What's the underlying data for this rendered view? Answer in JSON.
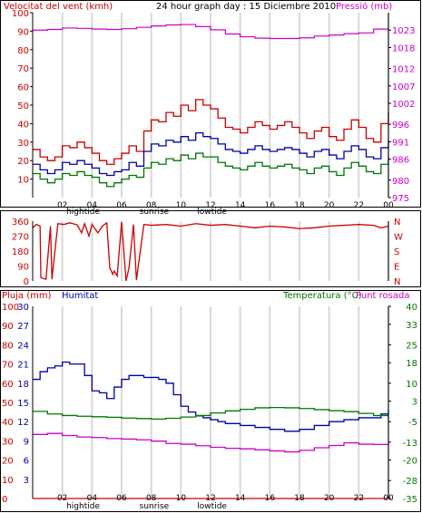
{
  "header": {
    "left_label": "Velocitat del vent (kmh)",
    "title": "24 hour graph day : 15 Diciembre 2010",
    "right_label": "Pressió (mb)"
  },
  "colors": {
    "wind": "#cc0000",
    "wind_avg": "#0000aa",
    "wind_low": "#007700",
    "pressure": "#cc00cc",
    "direction": "#cc0000",
    "rain": "#cc0000",
    "humidity": "#0000aa",
    "temperature": "#007700",
    "dewpoint": "#cc00cc",
    "grid": "#d8d8d8"
  },
  "time_axis": {
    "hours": [
      "02",
      "04",
      "06",
      "08",
      "10",
      "12",
      "14",
      "16",
      "18",
      "20",
      "22",
      "00"
    ],
    "events": [
      {
        "label": "hightide",
        "hour": 3.4
      },
      {
        "label": "sunrise",
        "hour": 8.2
      },
      {
        "label": "lowtide",
        "hour": 12.1
      }
    ]
  },
  "chart_data": [
    {
      "type": "line",
      "title": "24 hour graph day : 15 Diciembre 2010",
      "left_axis_label": "Velocitat del vent (kmh)",
      "right_axis_label": "Pressió (mb)",
      "x_range_hours": [
        0,
        24
      ],
      "left_ylim": [
        0,
        100
      ],
      "left_ticks": [
        10,
        20,
        30,
        40,
        50,
        60,
        70,
        80,
        90,
        100
      ],
      "right_ylim": [
        975,
        1028
      ],
      "right_ticks": [
        975,
        980,
        986,
        991,
        996,
        1002,
        1007,
        1012,
        1018,
        1023
      ],
      "series": [
        {
          "name": "gust",
          "axis": "left",
          "x": [
            0,
            0.5,
            1,
            1.5,
            2,
            2.5,
            3,
            3.5,
            4,
            4.5,
            5,
            5.5,
            6,
            6.5,
            7,
            7.5,
            8,
            8.5,
            9,
            9.5,
            10,
            10.5,
            11,
            11.5,
            12,
            12.5,
            13,
            13.5,
            14,
            14.5,
            15,
            15.5,
            16,
            16.5,
            17,
            17.5,
            18,
            18.5,
            19,
            19.5,
            20,
            20.5,
            21,
            21.5,
            22,
            22.5,
            23,
            23.5,
            24
          ],
          "y": [
            26,
            22,
            20,
            22,
            28,
            27,
            30,
            27,
            24,
            20,
            18,
            21,
            24,
            28,
            25,
            36,
            42,
            41,
            46,
            44,
            50,
            47,
            53,
            50,
            48,
            43,
            38,
            37,
            35,
            38,
            41,
            39,
            37,
            39,
            41,
            38,
            35,
            32,
            36,
            38,
            33,
            31,
            37,
            42,
            38,
            32,
            30,
            40,
            46
          ]
        },
        {
          "name": "average",
          "axis": "left",
          "x": [
            0,
            0.5,
            1,
            1.5,
            2,
            2.5,
            3,
            3.5,
            4,
            4.5,
            5,
            5.5,
            6,
            6.5,
            7,
            7.5,
            8,
            8.5,
            9,
            9.5,
            10,
            10.5,
            11,
            11.5,
            12,
            12.5,
            13,
            13.5,
            14,
            14.5,
            15,
            15.5,
            16,
            16.5,
            17,
            17.5,
            18,
            18.5,
            19,
            19.5,
            20,
            20.5,
            21,
            21.5,
            22,
            22.5,
            23,
            23.5,
            24
          ],
          "y": [
            18,
            15,
            13,
            15,
            19,
            18,
            20,
            18,
            16,
            13,
            12,
            14,
            15,
            19,
            17,
            25,
            29,
            28,
            31,
            30,
            33,
            31,
            35,
            33,
            32,
            29,
            26,
            25,
            24,
            26,
            28,
            26,
            25,
            26,
            27,
            26,
            24,
            22,
            25,
            26,
            23,
            21,
            25,
            28,
            26,
            22,
            21,
            27,
            31
          ]
        },
        {
          "name": "low",
          "axis": "left",
          "x": [
            0,
            0.5,
            1,
            1.5,
            2,
            2.5,
            3,
            3.5,
            4,
            4.5,
            5,
            5.5,
            6,
            6.5,
            7,
            7.5,
            8,
            8.5,
            9,
            9.5,
            10,
            10.5,
            11,
            11.5,
            12,
            12.5,
            13,
            13.5,
            14,
            14.5,
            15,
            15.5,
            16,
            16.5,
            17,
            17.5,
            18,
            18.5,
            19,
            19.5,
            20,
            20.5,
            21,
            21.5,
            22,
            22.5,
            23,
            23.5,
            24
          ],
          "y": [
            13,
            10,
            8,
            10,
            13,
            12,
            14,
            12,
            11,
            8,
            6,
            8,
            10,
            12,
            11,
            16,
            19,
            18,
            21,
            20,
            23,
            21,
            24,
            22,
            22,
            19,
            17,
            16,
            15,
            17,
            19,
            17,
            16,
            17,
            18,
            16,
            15,
            13,
            16,
            17,
            14,
            12,
            16,
            19,
            17,
            14,
            13,
            18,
            22
          ]
        },
        {
          "name": "pressure",
          "axis": "right",
          "x": [
            0,
            1,
            2,
            3,
            4,
            5,
            6,
            7,
            8,
            9,
            10,
            11,
            12,
            13,
            14,
            15,
            16,
            17,
            18,
            19,
            20,
            21,
            22,
            23,
            24
          ],
          "y": [
            1023.0,
            1023.2,
            1023.6,
            1023.5,
            1023.3,
            1023.2,
            1023.4,
            1023.8,
            1024.2,
            1024.5,
            1024.6,
            1024.0,
            1023.1,
            1021.9,
            1021.1,
            1020.7,
            1020.6,
            1020.6,
            1020.8,
            1021.3,
            1021.6,
            1022.0,
            1022.2,
            1023.3,
            1023.6
          ]
        }
      ]
    },
    {
      "type": "scatter",
      "title": "",
      "left_ylim": [
        0,
        360
      ],
      "left_ticks": [
        0,
        90,
        180,
        270,
        360
      ],
      "right_ticks": [
        "N",
        "W",
        "S",
        "E",
        "N"
      ],
      "series": [
        {
          "name": "direction",
          "x": [
            0,
            0.25,
            0.5,
            0.55,
            0.9,
            1.2,
            1.3,
            1.7,
            2.1,
            2.5,
            3.0,
            3.3,
            3.5,
            3.8,
            4.0,
            4.4,
            4.7,
            5.0,
            5.2,
            5.4,
            5.5,
            5.7,
            6.0,
            6.3,
            6.5,
            6.8,
            7.0,
            7.5,
            8,
            9,
            10,
            11,
            12,
            13,
            14,
            15,
            16,
            17,
            18,
            19,
            20,
            21,
            22,
            23,
            23.5,
            24
          ],
          "y": [
            320,
            340,
            330,
            20,
            10,
            330,
            10,
            345,
            340,
            350,
            338,
            290,
            345,
            270,
            340,
            290,
            330,
            350,
            80,
            40,
            60,
            30,
            355,
            0,
            80,
            340,
            5,
            340,
            335,
            340,
            330,
            345,
            335,
            340,
            330,
            320,
            330,
            325,
            315,
            320,
            330,
            335,
            340,
            335,
            320,
            330
          ]
        }
      ]
    },
    {
      "type": "line",
      "title": "",
      "left_axis_label": "Pluja (mm)",
      "left_axis2_label": "Humitat",
      "right_axis_label": "Temperatura (°C)",
      "right_axis2_label": "Punt rosada",
      "x_range_hours": [
        0,
        24
      ],
      "rain_ticks": [
        0,
        10,
        20,
        30,
        40,
        50,
        60,
        70,
        80,
        90,
        100
      ],
      "humidity_ticks": [
        3,
        6,
        9,
        12,
        15,
        18,
        21,
        24,
        27,
        30
      ],
      "temperature_ylim": [
        -35,
        40
      ],
      "temperature_ticks": [
        -35,
        -28,
        -20,
        -13,
        -5,
        3,
        10,
        18,
        25,
        33,
        40
      ],
      "series": [
        {
          "name": "rain",
          "axis": "rain",
          "x": [
            0,
            24
          ],
          "y": [
            0,
            0
          ]
        },
        {
          "name": "humidity",
          "axis": "rain",
          "x": [
            0,
            0.5,
            1,
            1.5,
            2,
            2.5,
            3,
            3.5,
            4,
            4.5,
            5,
            5.5,
            6,
            6.5,
            7,
            7.5,
            8,
            8.5,
            9,
            9.5,
            10,
            10.5,
            11,
            11.5,
            12,
            12.5,
            13,
            14,
            15,
            16,
            17,
            18,
            19,
            20,
            21,
            22,
            23,
            23.5,
            24
          ],
          "y": [
            62,
            66,
            68,
            69,
            71,
            70,
            70,
            64,
            56,
            55,
            52,
            58,
            62,
            64,
            64,
            63,
            63,
            62,
            60,
            54,
            48,
            45,
            43,
            42,
            41,
            40,
            39,
            38,
            37,
            36,
            35,
            36,
            38,
            40,
            41,
            42,
            42,
            44,
            46
          ]
        },
        {
          "name": "temperature",
          "axis": "temperature",
          "x": [
            0,
            1,
            2,
            3,
            4,
            5,
            6,
            7,
            8,
            9,
            10,
            11,
            12,
            13,
            14,
            15,
            16,
            17,
            18,
            19,
            20,
            21,
            22,
            23,
            24
          ],
          "y": [
            -1.0,
            -2.0,
            -2.6,
            -2.9,
            -3.1,
            -3.3,
            -3.6,
            -3.8,
            -4.0,
            -3.7,
            -3.2,
            -2.6,
            -1.6,
            -0.8,
            -0.2,
            0.4,
            0.5,
            0.4,
            0.1,
            -0.3,
            -0.7,
            -1.1,
            -1.8,
            -2.6,
            -4.0
          ]
        },
        {
          "name": "dewpoint",
          "axis": "temperature",
          "x": [
            0,
            1,
            2,
            3,
            4,
            5,
            6,
            7,
            8,
            9,
            10,
            11,
            12,
            13,
            14,
            15,
            16,
            17,
            18,
            19,
            20,
            21,
            22,
            23,
            24
          ],
          "y": [
            -10.0,
            -9.6,
            -10.4,
            -11.0,
            -11.2,
            -11.6,
            -11.8,
            -12.1,
            -12.6,
            -13.5,
            -13.8,
            -14.4,
            -15.0,
            -15.4,
            -15.6,
            -16.0,
            -16.4,
            -16.8,
            -16.2,
            -15.2,
            -14.3,
            -13.3,
            -13.8,
            -13.9,
            -13.3
          ]
        }
      ]
    }
  ],
  "bottom_panel": {
    "left_label": "Pluja (mm)",
    "mid_label": "Humitat",
    "right_label": "Temperatura (°C)",
    "right_label2": "Punt rosada"
  }
}
